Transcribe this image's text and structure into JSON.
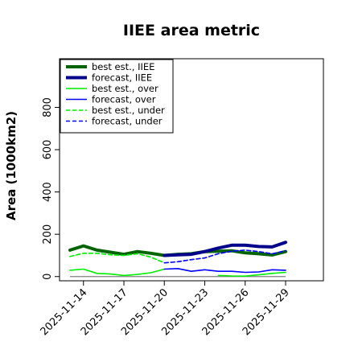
{
  "chart_data": {
    "type": "line",
    "title": "IIEE area metric",
    "xlabel": "",
    "ylabel": "Area (1000km2)",
    "ylim": [
      -20,
      1030
    ],
    "yticks": [
      0,
      200,
      400,
      600,
      800
    ],
    "x": [
      "2025-11-13",
      "2025-11-14",
      "2025-11-15",
      "2025-11-16",
      "2025-11-17",
      "2025-11-18",
      "2025-11-19",
      "2025-11-20",
      "2025-11-21",
      "2025-11-22",
      "2025-11-23",
      "2025-11-24",
      "2025-11-25",
      "2025-11-26",
      "2025-11-27",
      "2025-11-28",
      "2025-11-29",
      "2025-11-30"
    ],
    "xticks": [
      "2025-11-14",
      "2025-11-17",
      "2025-11-20",
      "2025-11-23",
      "2025-11-26",
      "2025-11-29"
    ],
    "highlight_tick": "2025-11-20",
    "highlight_color": "#228b22",
    "grid": false,
    "legend_position": "top-left",
    "series": [
      {
        "name": "best est., IIEE",
        "color": "#006400",
        "width": 4,
        "dash": "",
        "values": [
          125,
          145,
          125,
          115,
          105,
          118,
          110,
          100,
          105,
          108,
          118,
          120,
          122,
          112,
          108,
          102,
          118,
          null
        ]
      },
      {
        "name": "forecast, IIEE",
        "color": "#00008b",
        "width": 4,
        "dash": "",
        "values": [
          null,
          null,
          null,
          null,
          null,
          null,
          null,
          100,
          103,
          105,
          118,
          135,
          148,
          148,
          142,
          140,
          162,
          null
        ]
      },
      {
        "name": "best est., over",
        "color": "#00ee00",
        "width": 1.6,
        "dash": "",
        "values": [
          30,
          35,
          15,
          12,
          5,
          10,
          18,
          35,
          null,
          null,
          null,
          null,
          null,
          null,
          null,
          null,
          null,
          null
        ]
      },
      {
        "name": "forecast, over",
        "color": "#0000ff",
        "width": 1.6,
        "dash": "",
        "values": [
          null,
          null,
          null,
          null,
          null,
          null,
          null,
          35,
          38,
          25,
          32,
          25,
          25,
          20,
          22,
          32,
          30,
          null
        ]
      },
      {
        "name": "best est., under",
        "color": "#00ee00",
        "width": 1.6,
        "dash": "5,3",
        "values": [
          95,
          110,
          110,
          103,
          100,
          108,
          92,
          65,
          null,
          null,
          null,
          null,
          null,
          null,
          null,
          null,
          null,
          null
        ]
      },
      {
        "name": "forecast, under",
        "color": "#0000ff",
        "width": 1.6,
        "dash": "5,3",
        "values": [
          null,
          null,
          null,
          null,
          null,
          null,
          null,
          65,
          70,
          80,
          88,
          108,
          120,
          125,
          118,
          108,
          122,
          null
        ]
      },
      {
        "name": "",
        "color": "#00ee00",
        "width": 1.6,
        "dash": "",
        "values": [
          null,
          null,
          null,
          null,
          null,
          null,
          null,
          null,
          null,
          null,
          null,
          5,
          3,
          2,
          8,
          15,
          20,
          null
        ]
      }
    ],
    "zero_line_color": "#808080"
  }
}
